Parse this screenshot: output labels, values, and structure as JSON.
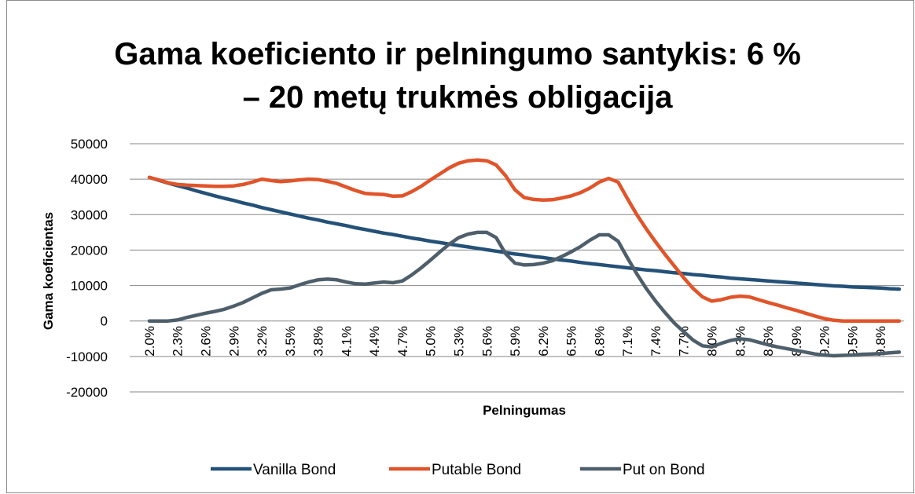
{
  "chart_data": {
    "type": "line",
    "title": "Gama koeficiento ir pelningumo santykis: 6 %",
    "subtitle": "– 20 metų trukmės obligacija",
    "x_label": "Pelningumas",
    "y_label": "Gama koeficientas",
    "categories": [
      "2.0%",
      null,
      null,
      "2.3%",
      null,
      null,
      "2.6%",
      null,
      null,
      "2.9%",
      null,
      null,
      "3.2%",
      null,
      null,
      "3.5%",
      null,
      null,
      "3.8%",
      null,
      null,
      "4.1%",
      null,
      null,
      "4.4%",
      null,
      null,
      "4.7%",
      null,
      null,
      "5.0%",
      null,
      null,
      "5.3%",
      null,
      null,
      "5.6%",
      null,
      null,
      "5.9%",
      null,
      null,
      "6.2%",
      null,
      null,
      "6.5%",
      null,
      null,
      "6.8%",
      null,
      null,
      "7.1%",
      null,
      null,
      "7.4%",
      null,
      null,
      "7.7%",
      null,
      null,
      "8.0%",
      null,
      null,
      "8.3%",
      null,
      null,
      "8.6%",
      null,
      null,
      "8.9%",
      null,
      null,
      "9.2%",
      null,
      null,
      "9.5%",
      null,
      null,
      "9.8%",
      null,
      null
    ],
    "series": [
      {
        "name": "Vanilla Bond",
        "color": "#245177",
        "values": [
          40500,
          39700,
          38900,
          38200,
          37500,
          36700,
          36000,
          35300,
          34600,
          34000,
          33300,
          32700,
          32000,
          31400,
          30800,
          30200,
          29600,
          29000,
          28500,
          27900,
          27400,
          26900,
          26300,
          25800,
          25300,
          24800,
          24400,
          23900,
          23400,
          23000,
          22500,
          22100,
          21700,
          21300,
          20900,
          20500,
          20100,
          19700,
          19300,
          18900,
          18600,
          18200,
          17900,
          17500,
          17200,
          16900,
          16500,
          16200,
          15900,
          15600,
          15300,
          15000,
          14700,
          14400,
          14200,
          13900,
          13600,
          13400,
          13100,
          12900,
          12600,
          12400,
          12100,
          11900,
          11700,
          11500,
          11300,
          11100,
          10900,
          10700,
          10500,
          10300,
          10100,
          9900,
          9800,
          9600,
          9500,
          9400,
          9300,
          9100,
          9000
        ]
      },
      {
        "name": "Putable Bond",
        "color": "#e1542a",
        "values": [
          40500,
          39800,
          39000,
          38500,
          38300,
          38200,
          38100,
          38000,
          38000,
          38100,
          38500,
          39200,
          40000,
          39600,
          39300,
          39500,
          39800,
          40000,
          39900,
          39400,
          38800,
          37800,
          36800,
          36000,
          35800,
          35700,
          35200,
          35300,
          36500,
          38000,
          39800,
          41500,
          43200,
          44500,
          45200,
          45400,
          45200,
          44000,
          41000,
          37000,
          34800,
          34300,
          34100,
          34200,
          34700,
          35300,
          36200,
          37500,
          39200,
          40200,
          39200,
          34500,
          30000,
          26000,
          22300,
          18800,
          15500,
          12200,
          9200,
          6800,
          5600,
          6000,
          6700,
          7000,
          6800,
          6000,
          5200,
          4500,
          3700,
          3000,
          2200,
          1400,
          700,
          200,
          0,
          0,
          0,
          0,
          0,
          0,
          0
        ]
      },
      {
        "name": "Put on Bond",
        "color": "#4e5f6b",
        "values": [
          0,
          0,
          0,
          300,
          1000,
          1600,
          2200,
          2700,
          3300,
          4200,
          5200,
          6500,
          7800,
          8800,
          9000,
          9300,
          10200,
          11000,
          11600,
          11800,
          11600,
          11000,
          10500,
          10400,
          10700,
          11000,
          10800,
          11300,
          13000,
          15000,
          17200,
          19500,
          21700,
          23500,
          24500,
          25000,
          25000,
          23500,
          19000,
          16300,
          15800,
          15900,
          16300,
          17000,
          18200,
          19500,
          21000,
          22800,
          24300,
          24300,
          22500,
          17800,
          13300,
          9200,
          5600,
          2400,
          -600,
          -3000,
          -5400,
          -7000,
          -7300,
          -6300,
          -5500,
          -5000,
          -5300,
          -6000,
          -6700,
          -7300,
          -7800,
          -8300,
          -8800,
          -9300,
          -9600,
          -9800,
          -9700,
          -9600,
          -9400,
          -9300,
          -9200,
          -9000,
          -8800
        ]
      }
    ],
    "ylim": [
      -20000,
      50000
    ],
    "yticks": [
      -20000,
      -10000,
      0,
      10000,
      20000,
      30000,
      40000,
      50000
    ],
    "grid": true,
    "legend": "bottom"
  }
}
